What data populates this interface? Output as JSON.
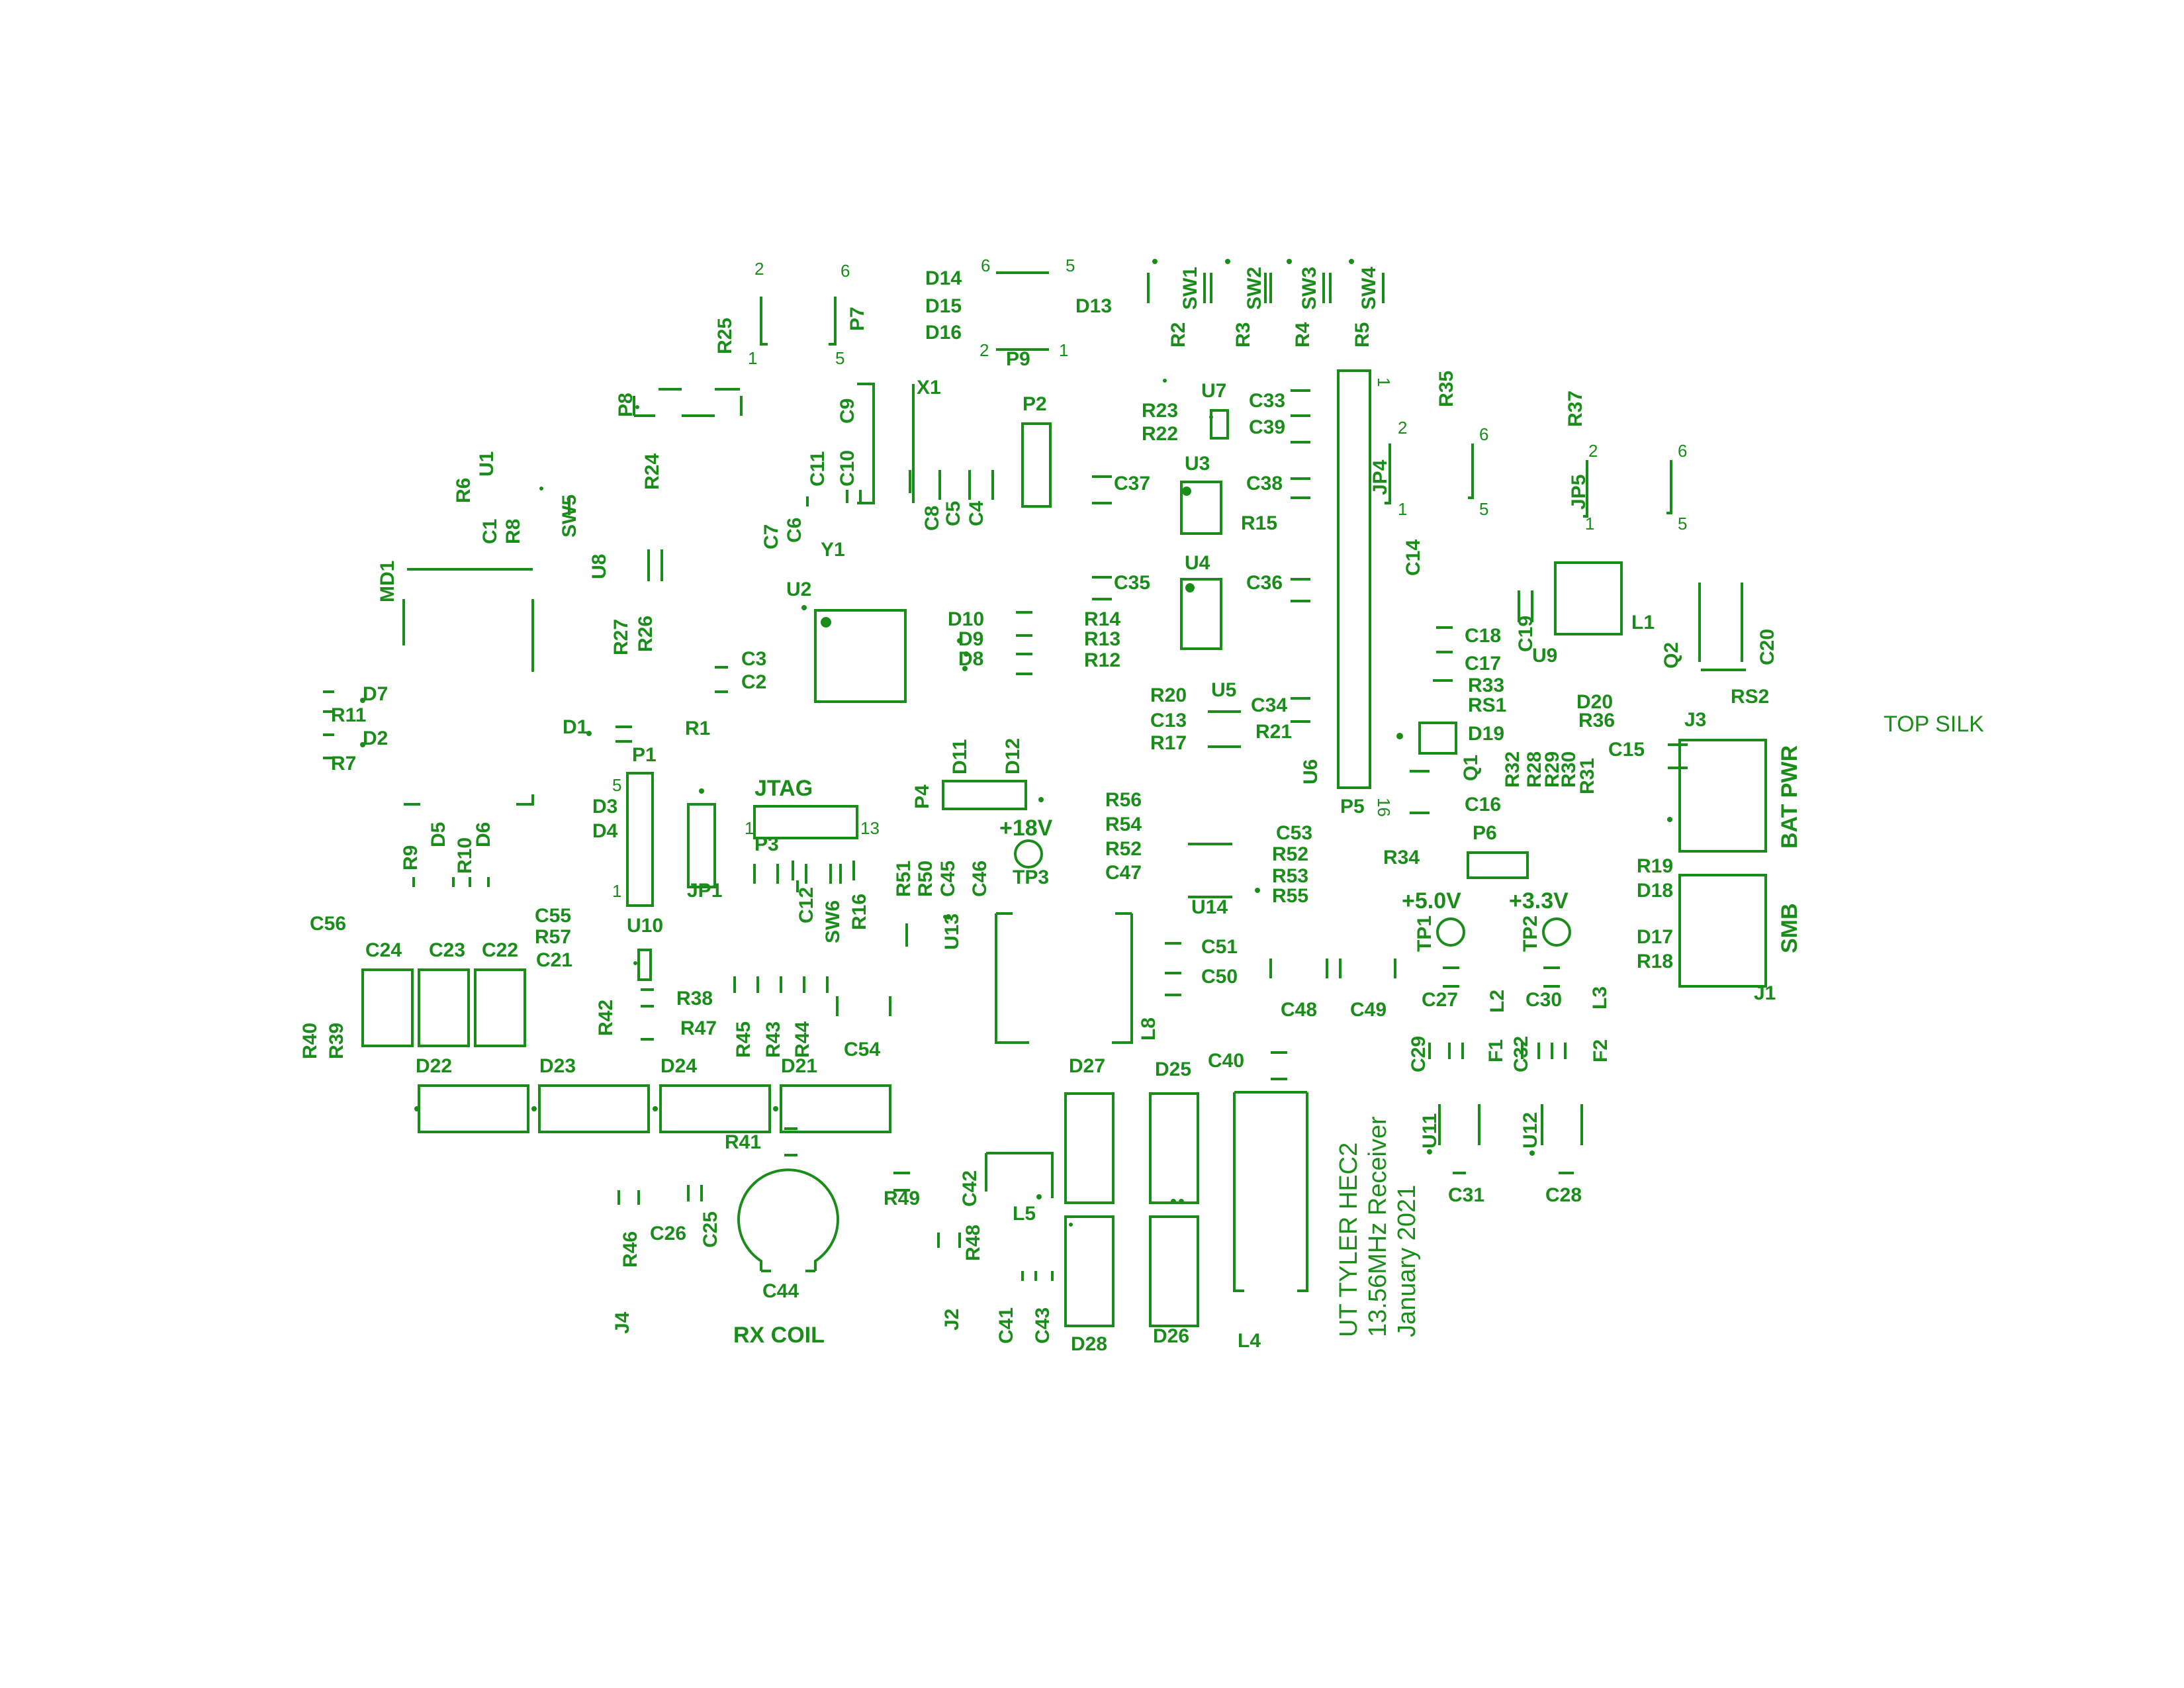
{
  "layer_label": "TOP SILK",
  "colors": {
    "silk": "#1a8c1a",
    "background": "#ffffff"
  },
  "board_text": [
    {
      "text": "UT TYLER HEC2"
    },
    {
      "text": "13.56MHz Receiver"
    },
    {
      "text": "January 2021"
    }
  ],
  "connector_labels": [
    "JTAG",
    "+18V",
    "+5.0V",
    "+3.3V",
    "BAT PWR",
    "SMB",
    "RX COIL"
  ],
  "pin_numbers": [
    "1",
    "2",
    "5",
    "6",
    "13",
    "16"
  ],
  "designators": [
    "D14",
    "D15",
    "D16",
    "D13",
    "P9",
    "P7",
    "R25",
    "SW1",
    "SW2",
    "SW3",
    "SW4",
    "R2",
    "R3",
    "R4",
    "R5",
    "R35",
    "R37",
    "X1",
    "P8",
    "P2",
    "R23",
    "R22",
    "U7",
    "C33",
    "C39",
    "U1",
    "R24",
    "C9",
    "C10",
    "C11",
    "C7",
    "C6",
    "Y1",
    "R6",
    "C1",
    "R8",
    "SW5",
    "C8",
    "C5",
    "C4",
    "C37",
    "U3",
    "C38",
    "JP4",
    "JP5",
    "R15",
    "C14",
    "MD1",
    "U8",
    "U4",
    "C35",
    "C36",
    "L1",
    "Q2",
    "C20",
    "R27",
    "R26",
    "U2",
    "D10",
    "D9",
    "D8",
    "R14",
    "R13",
    "R12",
    "C19",
    "C18",
    "C17",
    "U9",
    "C3",
    "C2",
    "R33",
    "RS1",
    "D20",
    "RS2",
    "R36",
    "J3",
    "D7",
    "R11",
    "D2",
    "R7",
    "R20",
    "C13",
    "R17",
    "U5",
    "C34",
    "R21",
    "D19",
    "D1",
    "R1",
    "P1",
    "U6",
    "C15",
    "Q1",
    "R32",
    "R28",
    "R29",
    "R30",
    "R31",
    "D11",
    "D12",
    "R56",
    "R54",
    "R52",
    "R47",
    "C47",
    "P4",
    "C16",
    "D3",
    "D4",
    "P3",
    "P5",
    "C53",
    "R53",
    "R55",
    "R34",
    "P6",
    "R19",
    "D18",
    "R9",
    "D5",
    "R10",
    "D6",
    "JP1",
    "C12",
    "SW6",
    "R16",
    "R51",
    "R50",
    "C45",
    "C46",
    "TP3",
    "U14",
    "TP1",
    "TP2",
    "C56",
    "C55",
    "R57",
    "U10",
    "U13",
    "C51",
    "D17",
    "R18",
    "J1",
    "C24",
    "C23",
    "C22",
    "C21",
    "C50",
    "C48",
    "C49",
    "C27",
    "L2",
    "C30",
    "L3",
    "R40",
    "R39",
    "R42",
    "R38",
    "R45",
    "R43",
    "R44",
    "L8",
    "C29",
    "F1",
    "C32",
    "F2",
    "D22",
    "D23",
    "D24",
    "D21",
    "C54",
    "D27",
    "D25",
    "C40",
    "U11",
    "U12",
    "R41",
    "C42",
    "C31",
    "C28",
    "R49",
    "L5",
    "R46",
    "C26",
    "C25",
    "R48",
    "C44",
    "J4",
    "J2",
    "C41",
    "C43",
    "D28",
    "D26",
    "L4"
  ]
}
